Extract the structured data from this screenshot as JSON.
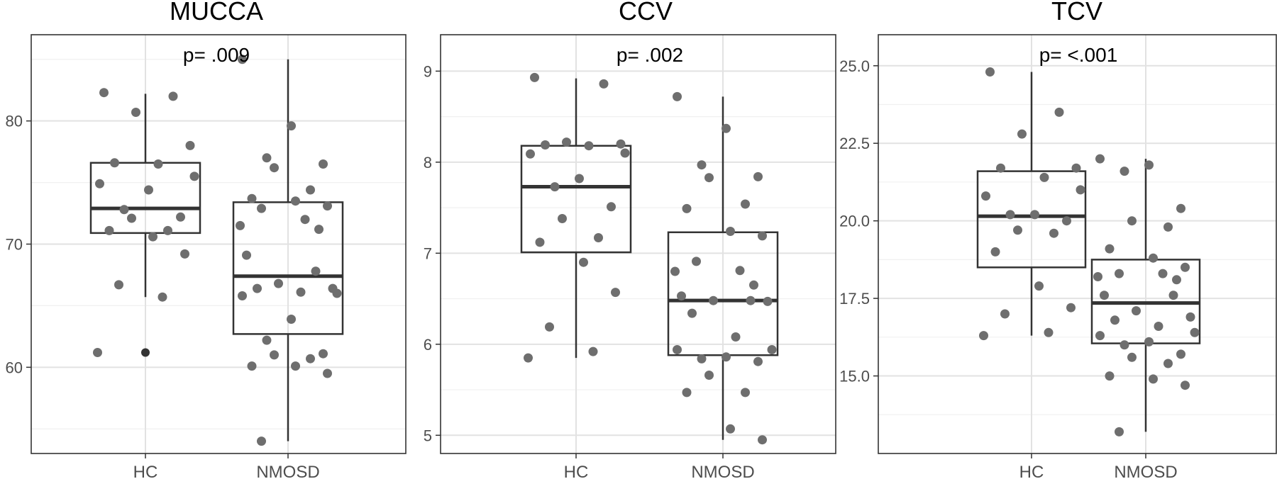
{
  "chart_data": [
    {
      "type": "box",
      "title": "MUCCA",
      "annotation": "p= .009",
      "categories": [
        "HC",
        "NMOSD"
      ],
      "ylim": [
        53,
        87
      ],
      "yticks": [
        60,
        70,
        80
      ],
      "grid": true,
      "boxes": [
        {
          "name": "HC",
          "whisker_low": 65.7,
          "q1": 70.9,
          "median": 72.9,
          "q3": 76.6,
          "whisker_high": 82.2,
          "outliers": [
            61.2
          ]
        },
        {
          "name": "NMOSD",
          "whisker_low": 54.0,
          "q1": 62.7,
          "median": 67.4,
          "q3": 73.4,
          "whisker_high": 85.0,
          "outliers": []
        }
      ],
      "points": [
        {
          "group": "HC",
          "values": [
            82.3,
            82.0,
            80.7,
            78.0,
            76.6,
            76.5,
            75.5,
            74.9,
            74.4,
            72.8,
            72.2,
            72.1,
            71.1,
            71.1,
            70.6,
            69.2,
            66.7,
            65.7,
            61.2
          ]
        },
        {
          "group": "NMOSD",
          "values": [
            85.0,
            79.6,
            77.0,
            76.5,
            76.2,
            74.4,
            73.7,
            73.5,
            73.1,
            72.9,
            72.0,
            71.5,
            71.2,
            69.1,
            67.8,
            66.8,
            66.4,
            66.4,
            66.1,
            66.0,
            65.8,
            63.9,
            62.2,
            61.1,
            61.0,
            60.7,
            60.1,
            60.1,
            59.5,
            54.0
          ]
        }
      ]
    },
    {
      "type": "box",
      "title": "CCV",
      "annotation": "p= .002",
      "categories": [
        "HC",
        "NMOSD"
      ],
      "ylim": [
        4.8,
        9.4
      ],
      "yticks": [
        5,
        6,
        7,
        8,
        9
      ],
      "grid": true,
      "boxes": [
        {
          "name": "HC",
          "whisker_low": 5.85,
          "q1": 7.01,
          "median": 7.73,
          "q3": 8.18,
          "whisker_high": 8.92,
          "outliers": []
        },
        {
          "name": "NMOSD",
          "whisker_low": 4.95,
          "q1": 5.88,
          "median": 6.48,
          "q3": 7.23,
          "whisker_high": 8.72,
          "outliers": []
        }
      ],
      "points": [
        {
          "group": "HC",
          "values": [
            8.93,
            8.86,
            8.22,
            8.2,
            8.19,
            8.18,
            8.1,
            8.09,
            7.82,
            7.73,
            7.51,
            7.38,
            7.17,
            7.12,
            6.9,
            6.57,
            6.19,
            5.92,
            5.85
          ]
        },
        {
          "group": "NMOSD",
          "values": [
            8.72,
            8.37,
            7.97,
            7.84,
            7.83,
            7.54,
            7.49,
            7.24,
            7.19,
            6.91,
            6.81,
            6.8,
            6.65,
            6.53,
            6.48,
            6.48,
            6.47,
            6.34,
            6.08,
            5.94,
            5.94,
            5.86,
            5.84,
            5.81,
            5.66,
            5.47,
            5.47,
            5.07,
            4.95
          ]
        }
      ]
    },
    {
      "type": "box",
      "title": "TCV",
      "annotation": "p= <.001",
      "categories": [
        "HC",
        "NMOSD"
      ],
      "ylim": [
        12.5,
        26.0
      ],
      "yticks": [
        15.0,
        17.5,
        20.0,
        22.5,
        25.0
      ],
      "yticklabels": [
        "15.0",
        "17.5",
        "20.0",
        "22.5",
        "25.0"
      ],
      "grid": true,
      "boxes": [
        {
          "name": "HC",
          "whisker_low": 16.3,
          "q1": 18.5,
          "median": 20.15,
          "q3": 21.6,
          "whisker_high": 24.8,
          "outliers": []
        },
        {
          "name": "NMOSD",
          "whisker_low": 13.2,
          "q1": 16.05,
          "median": 17.35,
          "q3": 18.75,
          "whisker_high": 22.0,
          "outliers": []
        }
      ],
      "points": [
        {
          "group": "HC",
          "values": [
            24.8,
            23.5,
            22.8,
            21.7,
            21.7,
            21.4,
            21.0,
            20.8,
            20.2,
            20.2,
            20.0,
            19.7,
            19.6,
            19.0,
            17.9,
            17.2,
            17.0,
            16.4,
            16.3
          ]
        },
        {
          "group": "NMOSD",
          "values": [
            22.0,
            21.8,
            21.6,
            20.4,
            20.0,
            19.8,
            19.1,
            18.8,
            18.5,
            18.3,
            18.3,
            18.2,
            18.1,
            17.6,
            17.6,
            17.1,
            16.9,
            16.8,
            16.6,
            16.4,
            16.3,
            16.1,
            16.0,
            15.7,
            15.6,
            15.4,
            15.0,
            14.9,
            14.7,
            13.2
          ]
        }
      ]
    }
  ]
}
